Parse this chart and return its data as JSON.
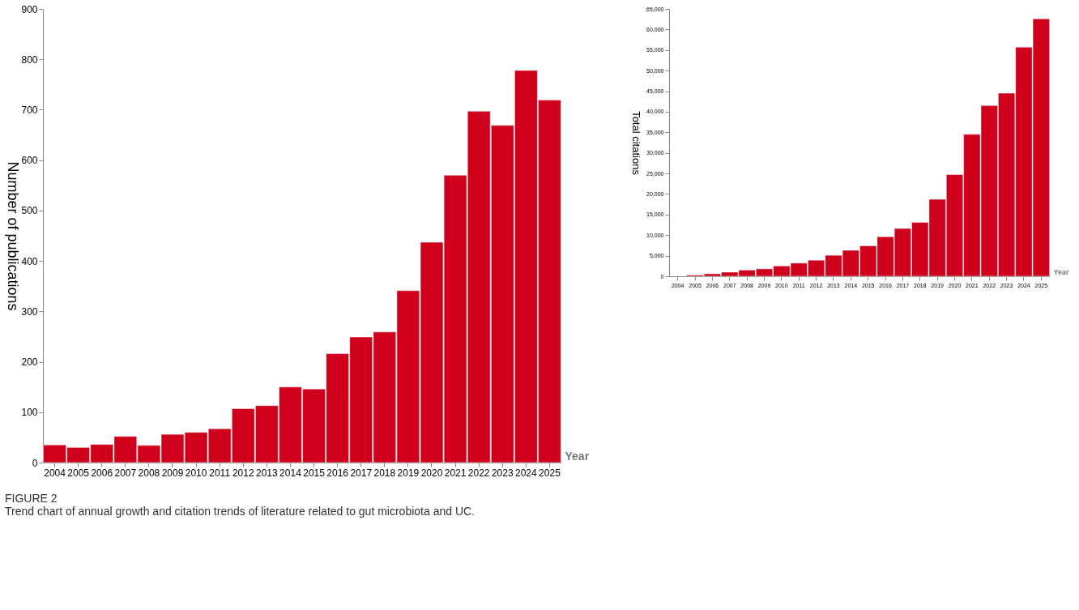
{
  "chart_data": [
    {
      "type": "bar",
      "xlabel": "Year",
      "ylabel": "Number of publications",
      "categories": [
        "2004",
        "2005",
        "2006",
        "2007",
        "2008",
        "2009",
        "2010",
        "2011",
        "2012",
        "2013",
        "2014",
        "2015",
        "2016",
        "2017",
        "2018",
        "2019",
        "2020",
        "2021",
        "2022",
        "2023",
        "2024",
        "2025"
      ],
      "values": [
        35,
        30,
        36,
        52,
        34,
        56,
        60,
        67,
        107,
        113,
        150,
        146,
        216,
        249,
        259,
        341,
        437,
        570,
        697,
        669,
        778,
        719
      ],
      "color": "#cf001c",
      "ylim": [
        0,
        900
      ],
      "yticks": [
        0,
        100,
        200,
        300,
        400,
        500,
        600,
        700,
        800,
        900
      ],
      "grid": false,
      "annotations": [
        "FIGURE 2",
        "Trend chart of annual growth and citation trends of literature related to gut microbiota and UC."
      ]
    },
    {
      "type": "bar",
      "xlabel": "Year",
      "ylabel": "Total citations",
      "categories": [
        "2004",
        "2005",
        "2006",
        "2007",
        "2008",
        "2009",
        "2010",
        "2011",
        "2012",
        "2013",
        "2014",
        "2015",
        "2016",
        "2017",
        "2018",
        "2019",
        "2020",
        "2021",
        "2022",
        "2023",
        "2024",
        "2025"
      ],
      "values": [
        null,
        300,
        600,
        1000,
        1500,
        1800,
        2500,
        3200,
        3900,
        5100,
        6300,
        7400,
        9600,
        11600,
        13100,
        18700,
        24700,
        34500,
        41500,
        44500,
        55700,
        62600
      ],
      "color": "#cf001c",
      "ylim": [
        0,
        65000
      ],
      "yticks": [
        0,
        {
          "value": 5000,
          "label": "5,000"
        },
        {
          "value": 10000,
          "label": "10,000"
        },
        {
          "value": 15000,
          "label": "15,000"
        },
        {
          "value": 20000,
          "label": "20,000"
        },
        {
          "value": 25000,
          "label": "25,000"
        },
        {
          "value": 30000,
          "label": "30,000"
        },
        {
          "value": 35000,
          "label": "35,000"
        },
        {
          "value": 40000,
          "label": "40,000"
        },
        {
          "value": 45000,
          "label": "45,000"
        },
        {
          "value": 50000,
          "label": "50,000"
        },
        {
          "value": 55000,
          "label": "55,000"
        },
        {
          "value": 60000,
          "label": "60,000"
        },
        {
          "value": 65000,
          "label": "65,000"
        }
      ],
      "grid": false
    }
  ]
}
